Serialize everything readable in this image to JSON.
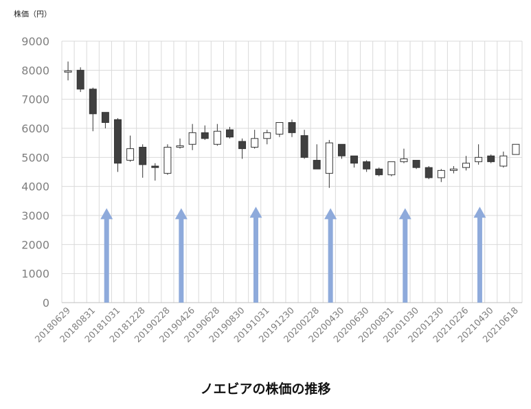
{
  "chart_data": {
    "type": "candlestick",
    "title": "ノエビアの株価の推移",
    "ylabel": "株価（円）",
    "ylim": [
      0,
      9000
    ],
    "yticks": [
      0,
      1000,
      2000,
      3000,
      4000,
      5000,
      6000,
      7000,
      8000,
      9000
    ],
    "grid": true,
    "xtick_labels": [
      "20180629",
      "20180831",
      "20181031",
      "20181228",
      "20190228",
      "20190426",
      "20190628",
      "20190830",
      "20191031",
      "20191230",
      "20200228",
      "20200430",
      "20200630",
      "20200831",
      "20201030",
      "20201230",
      "20210226",
      "20210430",
      "20210618"
    ],
    "candles": [
      {
        "o": 7950,
        "h": 8300,
        "l": 7650,
        "c": 7980
      },
      {
        "o": 8000,
        "h": 8100,
        "l": 7250,
        "c": 7350
      },
      {
        "o": 7350,
        "h": 7400,
        "l": 5900,
        "c": 6500
      },
      {
        "o": 6550,
        "h": 6550,
        "l": 6000,
        "c": 6200
      },
      {
        "o": 6300,
        "h": 6350,
        "l": 4500,
        "c": 4800
      },
      {
        "o": 4900,
        "h": 5750,
        "l": 4850,
        "c": 5300
      },
      {
        "o": 5350,
        "h": 5450,
        "l": 4300,
        "c": 4750
      },
      {
        "o": 4700,
        "h": 4800,
        "l": 4200,
        "c": 4650
      },
      {
        "o": 4450,
        "h": 5450,
        "l": 4400,
        "c": 5350
      },
      {
        "o": 5350,
        "h": 5650,
        "l": 5300,
        "c": 5400
      },
      {
        "o": 5450,
        "h": 6150,
        "l": 5250,
        "c": 5850
      },
      {
        "o": 5850,
        "h": 6100,
        "l": 5600,
        "c": 5650
      },
      {
        "o": 5450,
        "h": 6150,
        "l": 5400,
        "c": 5900
      },
      {
        "o": 5950,
        "h": 6050,
        "l": 5650,
        "c": 5700
      },
      {
        "o": 5550,
        "h": 5650,
        "l": 4950,
        "c": 5300
      },
      {
        "o": 5350,
        "h": 5950,
        "l": 5300,
        "c": 5650
      },
      {
        "o": 5650,
        "h": 5950,
        "l": 5450,
        "c": 5850
      },
      {
        "o": 5800,
        "h": 6200,
        "l": 5700,
        "c": 6200
      },
      {
        "o": 6200,
        "h": 6300,
        "l": 5700,
        "c": 5850
      },
      {
        "o": 5750,
        "h": 5950,
        "l": 4950,
        "c": 5000
      },
      {
        "o": 4900,
        "h": 5450,
        "l": 4600,
        "c": 4600
      },
      {
        "o": 4450,
        "h": 5600,
        "l": 3950,
        "c": 5500
      },
      {
        "o": 5450,
        "h": 5450,
        "l": 4950,
        "c": 5050
      },
      {
        "o": 5050,
        "h": 5050,
        "l": 4650,
        "c": 4800
      },
      {
        "o": 4850,
        "h": 4900,
        "l": 4500,
        "c": 4600
      },
      {
        "o": 4600,
        "h": 4650,
        "l": 4350,
        "c": 4400
      },
      {
        "o": 4400,
        "h": 4850,
        "l": 4350,
        "c": 4850
      },
      {
        "o": 4850,
        "h": 5300,
        "l": 4800,
        "c": 4950
      },
      {
        "o": 4900,
        "h": 4900,
        "l": 4600,
        "c": 4650
      },
      {
        "o": 4650,
        "h": 4700,
        "l": 4250,
        "c": 4300
      },
      {
        "o": 4300,
        "h": 4600,
        "l": 4150,
        "c": 4550
      },
      {
        "o": 4550,
        "h": 4700,
        "l": 4450,
        "c": 4600
      },
      {
        "o": 4650,
        "h": 5050,
        "l": 4550,
        "c": 4800
      },
      {
        "o": 4850,
        "h": 5450,
        "l": 4750,
        "c": 5000
      },
      {
        "o": 5050,
        "h": 5100,
        "l": 4800,
        "c": 4850
      },
      {
        "o": 4700,
        "h": 5200,
        "l": 4650,
        "c": 5050
      },
      {
        "o": 5100,
        "h": 5450,
        "l": 5100,
        "c": 5450
      }
    ],
    "arrows": [
      {
        "candle_index": 3,
        "top": 3250,
        "bottom": 0
      },
      {
        "candle_index": 9,
        "top": 3250,
        "bottom": 0
      },
      {
        "candle_index": 15,
        "top": 3300,
        "bottom": 0
      },
      {
        "candle_index": 21,
        "top": 3250,
        "bottom": 0
      },
      {
        "candle_index": 27,
        "top": 3250,
        "bottom": 0
      },
      {
        "candle_index": 33,
        "top": 3300,
        "bottom": 0
      }
    ],
    "colors": {
      "up": "#ffffff",
      "down": "#404040",
      "border": "#333333",
      "arrow": "#8eaadb",
      "grid": "#d9d9d9",
      "axis": "#7f7f7f"
    }
  }
}
